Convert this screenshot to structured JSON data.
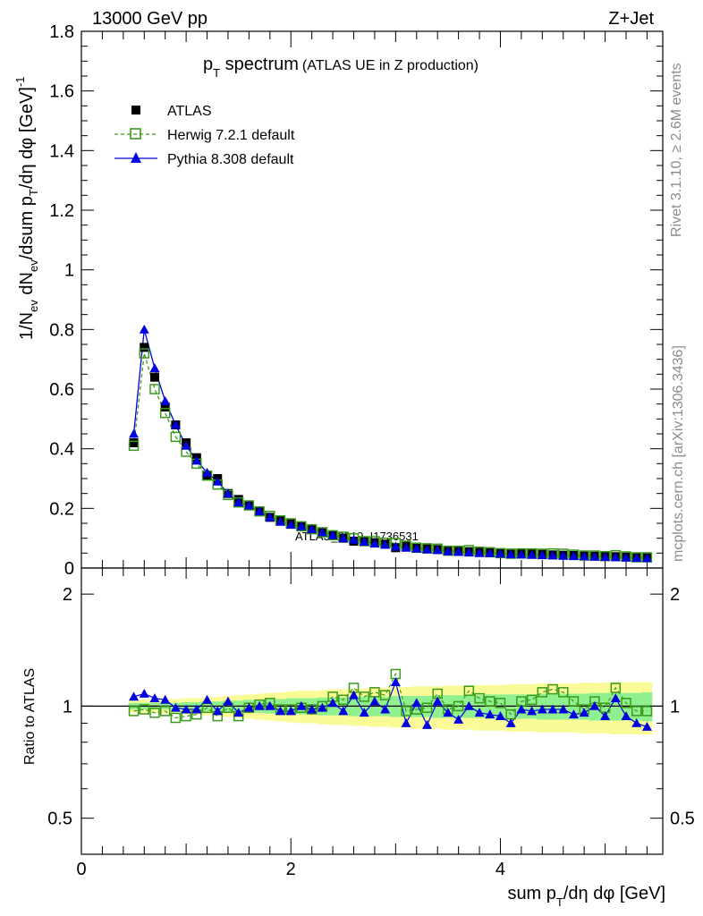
{
  "header": {
    "left": "13000 GeV pp",
    "right": "Z+Jet"
  },
  "side_text": {
    "rivet": "Rivet 3.1.10, ≥ 2.6M events",
    "mcplots": "mcplots.cern.ch [arXiv:1306.3436]"
  },
  "colors": {
    "data": "#000000",
    "herwig": "#3a9a1a",
    "pythia": "#0000e0",
    "band_inner": "#90f090",
    "band_outer": "#fafa96"
  },
  "chart_data": [
    {
      "type": "scatter",
      "title_main": "p",
      "title_sub": "T",
      "title_rest": " spectrum",
      "title_extra": "(ATLAS UE in Z production)",
      "watermark": "ATLAS_2019_I1736531",
      "ylabel": "1/N_ev dN_ev/dsum p_T/dη dφ [GeV]^-1",
      "ylim": [
        0,
        1.8
      ],
      "yticks": [
        "0",
        "0.2",
        "0.4",
        "0.6",
        "0.8",
        "1",
        "1.2",
        "1.4",
        "1.6",
        "1.8"
      ],
      "legend_position": "top-left",
      "x": [
        0.5,
        0.6,
        0.7,
        0.8,
        0.9,
        1.0,
        1.1,
        1.2,
        1.3,
        1.4,
        1.5,
        1.6,
        1.7,
        1.8,
        1.9,
        2.0,
        2.1,
        2.2,
        2.3,
        2.4,
        2.5,
        2.6,
        2.7,
        2.8,
        2.9,
        3.0,
        3.1,
        3.2,
        3.3,
        3.4,
        3.5,
        3.6,
        3.7,
        3.8,
        3.9,
        4.0,
        4.1,
        4.2,
        4.3,
        4.4,
        4.5,
        4.6,
        4.7,
        4.8,
        4.9,
        5.0,
        5.1,
        5.2,
        5.3,
        5.4
      ],
      "series": [
        {
          "name": "ATLAS",
          "marker": "square-filled",
          "values": [
            0.42,
            0.74,
            0.64,
            0.54,
            0.48,
            0.42,
            0.37,
            0.31,
            0.3,
            0.25,
            0.23,
            0.21,
            0.19,
            0.17,
            0.16,
            0.15,
            0.14,
            0.13,
            0.12,
            0.11,
            0.1,
            0.09,
            0.09,
            0.085,
            0.08,
            0.068,
            0.075,
            0.07,
            0.068,
            0.062,
            0.058,
            0.056,
            0.055,
            0.053,
            0.052,
            0.05,
            0.05,
            0.048,
            0.047,
            0.046,
            0.044,
            0.043,
            0.042,
            0.041,
            0.04,
            0.039,
            0.038,
            0.037,
            0.036,
            0.035
          ]
        },
        {
          "name": "Herwig 7.2.1 default",
          "marker": "square-open",
          "values": [
            0.41,
            0.72,
            0.6,
            0.52,
            0.44,
            0.39,
            0.35,
            0.31,
            0.28,
            0.245,
            0.22,
            0.21,
            0.19,
            0.175,
            0.16,
            0.15,
            0.14,
            0.13,
            0.12,
            0.11,
            0.105,
            0.1,
            0.09,
            0.09,
            0.085,
            0.084,
            0.075,
            0.068,
            0.066,
            0.065,
            0.058,
            0.058,
            0.06,
            0.055,
            0.053,
            0.05,
            0.048,
            0.049,
            0.049,
            0.048,
            0.049,
            0.048,
            0.045,
            0.042,
            0.042,
            0.04,
            0.043,
            0.039,
            0.036,
            0.036
          ]
        },
        {
          "name": "Pythia 8.308 default",
          "marker": "triangle-filled",
          "values": [
            0.45,
            0.8,
            0.67,
            0.56,
            0.48,
            0.41,
            0.36,
            0.32,
            0.29,
            0.25,
            0.22,
            0.21,
            0.19,
            0.17,
            0.155,
            0.145,
            0.14,
            0.13,
            0.12,
            0.11,
            0.1,
            0.095,
            0.088,
            0.082,
            0.078,
            0.072,
            0.068,
            0.065,
            0.062,
            0.06,
            0.056,
            0.054,
            0.052,
            0.05,
            0.05,
            0.048,
            0.046,
            0.045,
            0.044,
            0.043,
            0.042,
            0.041,
            0.04,
            0.039,
            0.038,
            0.037,
            0.036,
            0.035,
            0.034,
            0.033
          ]
        }
      ]
    },
    {
      "type": "scatter",
      "ylabel": "Ratio to ATLAS",
      "xlabel": "sum p_T/dη dφ [GeV]",
      "xlim": [
        0,
        5.55
      ],
      "xticks": [
        "0",
        "2",
        "4"
      ],
      "ylim": [
        0.4,
        2.35
      ],
      "ylog": true,
      "yticks": [
        "0.5",
        "1",
        "2"
      ],
      "reference_line": 1,
      "band_inner_halfwidth": [
        0.02,
        0.02,
        0.02,
        0.02,
        0.02,
        0.025,
        0.025,
        0.03,
        0.03,
        0.035,
        0.035,
        0.04,
        0.04,
        0.045,
        0.045,
        0.05,
        0.05,
        0.05,
        0.055,
        0.055,
        0.055,
        0.06,
        0.06,
        0.06,
        0.06,
        0.065,
        0.065,
        0.065,
        0.065,
        0.07,
        0.07,
        0.07,
        0.07,
        0.07,
        0.075,
        0.075,
        0.075,
        0.075,
        0.075,
        0.08,
        0.08,
        0.08,
        0.08,
        0.08,
        0.085,
        0.085,
        0.085,
        0.085,
        0.085,
        0.09
      ],
      "band_outer_halfwidth": [
        0.04,
        0.04,
        0.04,
        0.045,
        0.045,
        0.05,
        0.05,
        0.055,
        0.06,
        0.065,
        0.07,
        0.075,
        0.08,
        0.085,
        0.09,
        0.095,
        0.1,
        0.1,
        0.105,
        0.11,
        0.11,
        0.115,
        0.115,
        0.12,
        0.12,
        0.125,
        0.125,
        0.13,
        0.13,
        0.13,
        0.135,
        0.135,
        0.135,
        0.14,
        0.14,
        0.14,
        0.145,
        0.145,
        0.145,
        0.15,
        0.15,
        0.15,
        0.15,
        0.155,
        0.155,
        0.155,
        0.16,
        0.16,
        0.16,
        0.16
      ],
      "series": [
        {
          "name": "Herwig 7.2.1 default",
          "values": [
            0.97,
            0.98,
            0.96,
            0.97,
            0.93,
            0.94,
            0.95,
            0.99,
            0.94,
            0.99,
            0.94,
            0.99,
            1.01,
            1.02,
            0.98,
            0.98,
            0.99,
            0.98,
            1.0,
            1.06,
            1.04,
            1.12,
            1.06,
            1.09,
            1.07,
            1.22,
            0.97,
            0.98,
            0.99,
            1.08,
            0.98,
            1.0,
            1.1,
            1.05,
            1.03,
            1.02,
            0.95,
            1.03,
            1.04,
            1.09,
            1.11,
            1.09,
            1.03,
            0.98,
            1.03,
            0.99,
            1.12,
            1.02,
            0.97,
            0.97
          ]
        },
        {
          "name": "Pythia 8.308 default",
          "values": [
            1.06,
            1.08,
            1.05,
            1.04,
            0.99,
            0.98,
            0.98,
            1.04,
            0.97,
            1.03,
            0.96,
            0.99,
            1.0,
            1.0,
            0.97,
            0.97,
            1.0,
            0.98,
            0.99,
            1.02,
            0.97,
            1.07,
            0.96,
            1.03,
            0.98,
            1.16,
            0.9,
            1.02,
            0.89,
            1.03,
            0.96,
            0.92,
            1.0,
            0.96,
            0.95,
            0.94,
            0.9,
            0.98,
            0.97,
            0.98,
            0.98,
            0.98,
            0.95,
            0.96,
            1.0,
            0.94,
            1.05,
            0.94,
            0.9,
            0.88
          ]
        }
      ]
    }
  ]
}
